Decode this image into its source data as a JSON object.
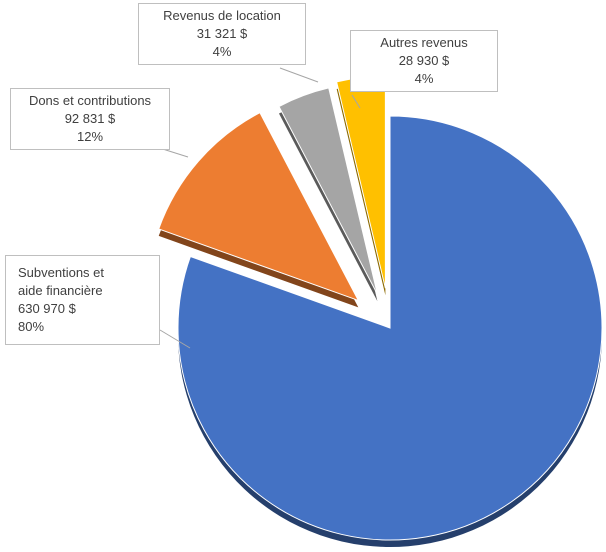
{
  "chart_data": {
    "type": "pie",
    "categories": [
      "Subventions et aide financière",
      "Dons et contributions",
      "Revenus de location",
      "Autres revenus"
    ],
    "values": [
      630970,
      92831,
      31321,
      28930
    ],
    "value_labels": [
      "630 970 $",
      "92 831 $",
      "31 321 $",
      "28 930 $"
    ],
    "percent_labels": [
      "80%",
      "12%",
      "4%",
      "4%"
    ],
    "colors": [
      "#4472c4",
      "#ed7d31",
      "#a5a5a5",
      "#ffc000"
    ]
  }
}
